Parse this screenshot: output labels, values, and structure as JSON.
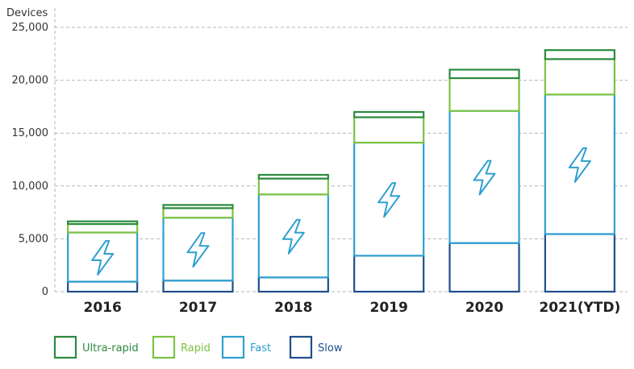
{
  "chart_data": {
    "type": "bar",
    "stacked": true,
    "ylabel": "Devices",
    "ylim": [
      0,
      25000
    ],
    "yticks": [
      "0",
      "5,000",
      "10,000",
      "15,000",
      "20,000",
      "25,000"
    ],
    "ytick_values": [
      0,
      5000,
      10000,
      15000,
      20000,
      25000
    ],
    "grid": true,
    "legend_position": "bottom-left",
    "categories": [
      "2016",
      "2017",
      "2018",
      "2019",
      "2020",
      "2021(YTD)"
    ],
    "series": [
      {
        "name": "Slow",
        "color": "#1f4e8c",
        "values": [
          950,
          1050,
          1350,
          3400,
          4600,
          5450
        ]
      },
      {
        "name": "Fast",
        "color": "#2e9fd0",
        "values": [
          4650,
          5950,
          7850,
          10700,
          12500,
          13200
        ]
      },
      {
        "name": "Rapid",
        "color": "#7cc242",
        "values": [
          800,
          900,
          1500,
          2400,
          3100,
          3350
        ]
      },
      {
        "name": "Ultra-rapid",
        "color": "#2b8a3e",
        "values": [
          250,
          300,
          350,
          500,
          800,
          850
        ]
      }
    ],
    "legend_order": [
      "Ultra-rapid",
      "Rapid",
      "Fast",
      "Slow"
    ],
    "bar_icon": "lightning-bolt-icon"
  }
}
